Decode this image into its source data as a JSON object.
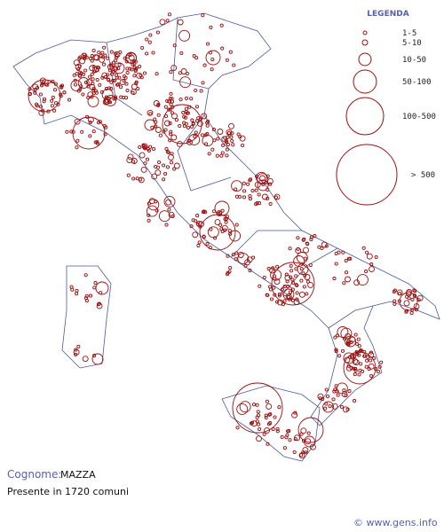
{
  "legend": {
    "title": "LEGENDA",
    "items": [
      "1-5",
      "5-10",
      "10-50",
      "50-100",
      "100-500",
      "> 500"
    ]
  },
  "footer": {
    "surname_label": "Cognome:",
    "surname": "MAZZA",
    "presence": "Presente in 1720 comuni",
    "credit": "© www.gens.info"
  }
}
